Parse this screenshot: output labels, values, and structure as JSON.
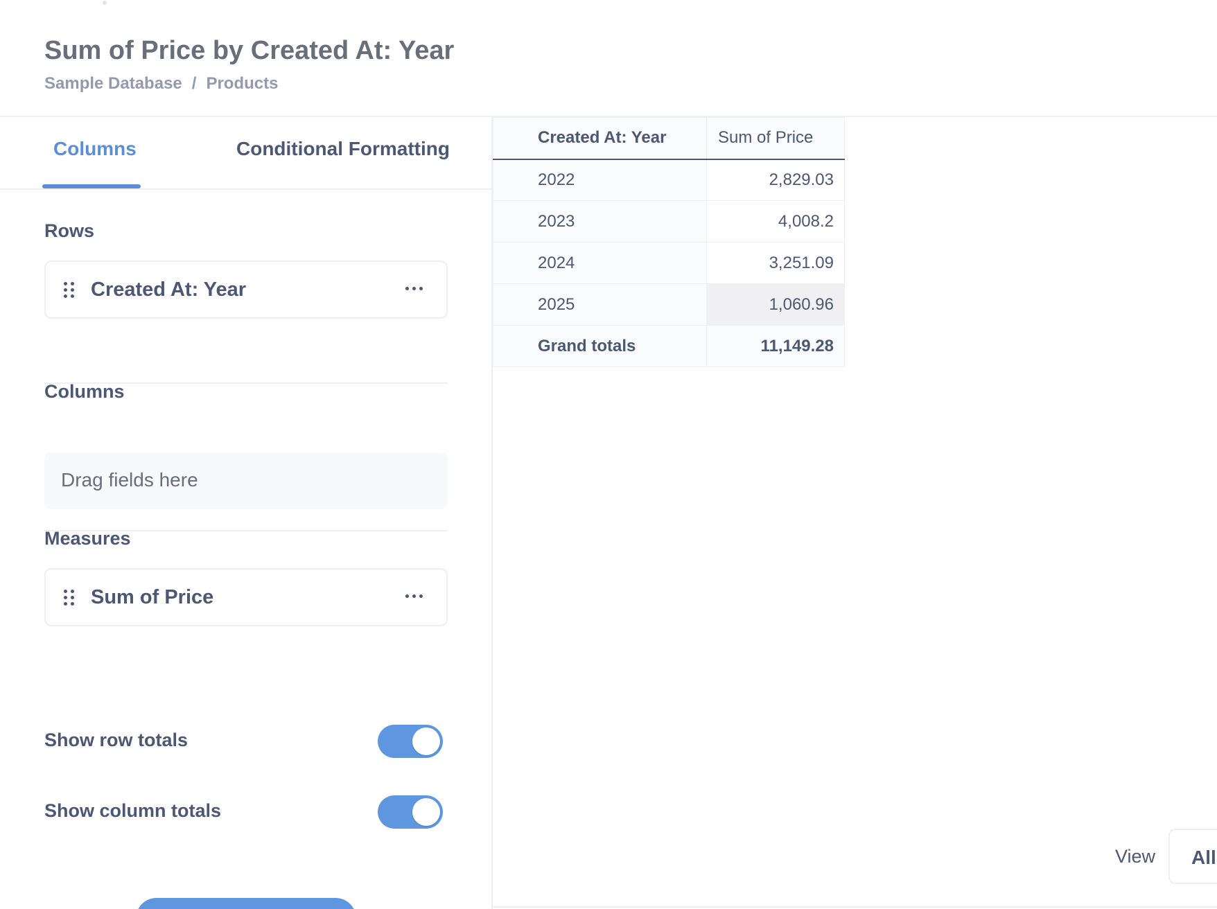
{
  "header": {
    "title": "Sum of Price by Created At: Year",
    "breadcrumb": {
      "database": "Sample Database",
      "separator": "/",
      "table": "Products"
    }
  },
  "sidebar": {
    "tabs": [
      {
        "label": "Columns",
        "active": true
      },
      {
        "label": "Conditional Formatting",
        "active": false
      }
    ],
    "rows": {
      "label": "Rows",
      "fields": [
        {
          "label": "Created At: Year"
        }
      ]
    },
    "columns": {
      "label": "Columns",
      "placeholder": "Drag fields here"
    },
    "measures": {
      "label": "Measures",
      "fields": [
        {
          "label": "Sum of Price"
        }
      ]
    },
    "toggles": [
      {
        "label": "Show row totals",
        "on": true
      },
      {
        "label": "Show column totals",
        "on": true
      }
    ]
  },
  "table": {
    "headers": [
      "Created At: Year",
      "Sum of Price"
    ],
    "rows": [
      [
        "2022",
        "2,829.03"
      ],
      [
        "2023",
        "4,008.2"
      ],
      [
        "2024",
        "3,251.09"
      ],
      [
        "2025",
        "1,060.96"
      ]
    ],
    "totals": [
      "Grand totals",
      "11,149.28"
    ]
  },
  "footer": {
    "view_label": "View",
    "view_value": "All"
  },
  "colors": {
    "accent": "#5e97e0",
    "text": "#4c5773",
    "muted": "#949aab"
  }
}
